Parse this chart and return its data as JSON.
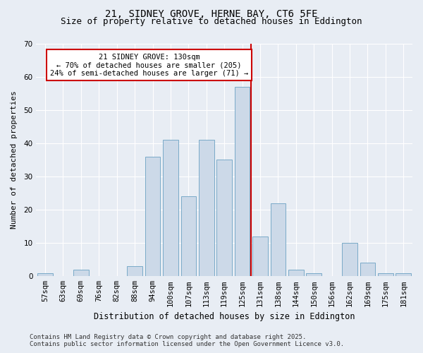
{
  "title1": "21, SIDNEY GROVE, HERNE BAY, CT6 5FE",
  "title2": "Size of property relative to detached houses in Eddington",
  "xlabel": "Distribution of detached houses by size in Eddington",
  "ylabel": "Number of detached properties",
  "categories": [
    "57sqm",
    "63sqm",
    "69sqm",
    "76sqm",
    "82sqm",
    "88sqm",
    "94sqm",
    "100sqm",
    "107sqm",
    "113sqm",
    "119sqm",
    "125sqm",
    "131sqm",
    "138sqm",
    "144sqm",
    "150sqm",
    "156sqm",
    "162sqm",
    "169sqm",
    "175sqm",
    "181sqm"
  ],
  "values": [
    1,
    0,
    2,
    0,
    0,
    3,
    36,
    41,
    24,
    41,
    35,
    57,
    12,
    22,
    2,
    1,
    0,
    10,
    4,
    1,
    1
  ],
  "bar_color": "#ccd9e8",
  "bar_edge_color": "#7aaac8",
  "ref_line_color": "#cc0000",
  "annotation_text": "21 SIDNEY GROVE: 130sqm\n← 70% of detached houses are smaller (205)\n24% of semi-detached houses are larger (71) →",
  "annotation_box_color": "#ffffff",
  "annotation_box_edge_color": "#cc0000",
  "ylim": [
    0,
    70
  ],
  "yticks": [
    0,
    10,
    20,
    30,
    40,
    50,
    60,
    70
  ],
  "background_color": "#e8edf4",
  "footer_text": "Contains HM Land Registry data © Crown copyright and database right 2025.\nContains public sector information licensed under the Open Government Licence v3.0.",
  "title1_fontsize": 10,
  "title2_fontsize": 9,
  "xlabel_fontsize": 8.5,
  "ylabel_fontsize": 8,
  "tick_fontsize": 7.5,
  "annotation_fontsize": 7.5,
  "footer_fontsize": 6.5
}
